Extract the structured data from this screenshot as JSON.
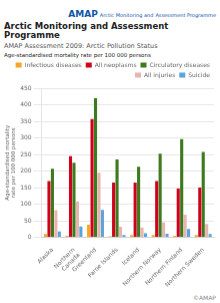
{
  "chart_data": {
    "type": "bar",
    "title": "Arctic Monitoring and Assessment Programme",
    "subtitle": "AMAP Assessment 2009: Arctic Pollution Status",
    "ylabel": "Age-standardised mortality rate per 100 000 persons",
    "annotations": [
      "AMAP",
      "Arctic Monitoring and",
      "Assessment Programme",
      "©AMAP"
    ],
    "categories": [
      "Alaska",
      "Northern\nCanada",
      "Greenland",
      "Faroe Islands",
      "Iceland",
      "Northern Norway",
      "Northern Finland",
      "Northern Sweden"
    ],
    "series": [
      {
        "name": "Infectious diseases",
        "color": "#f5a623",
        "values": [
          10,
          5,
          38,
          3,
          7,
          7,
          5,
          7
        ]
      },
      {
        "name": "All neoplasms",
        "color": "#d0021b",
        "values": [
          170,
          245,
          357,
          165,
          165,
          170,
          147,
          150
        ]
      },
      {
        "name": "Circulatory diseases",
        "color": "#3d7a1e",
        "values": [
          207,
          225,
          420,
          235,
          213,
          252,
          296,
          258
        ]
      },
      {
        "name": "All injuries",
        "color": "#e8b4b0",
        "values": [
          82,
          108,
          195,
          32,
          30,
          45,
          68,
          40
        ]
      },
      {
        "name": "Suicide",
        "color": "#5ba3d9",
        "values": [
          18,
          33,
          83,
          7,
          12,
          11,
          25,
          10
        ]
      }
    ],
    "ylim": [
      0,
      450
    ],
    "yticks": [
      0,
      50,
      100,
      150,
      200,
      250,
      300,
      350,
      400,
      450
    ],
    "grid": true,
    "legend": "upper right"
  }
}
